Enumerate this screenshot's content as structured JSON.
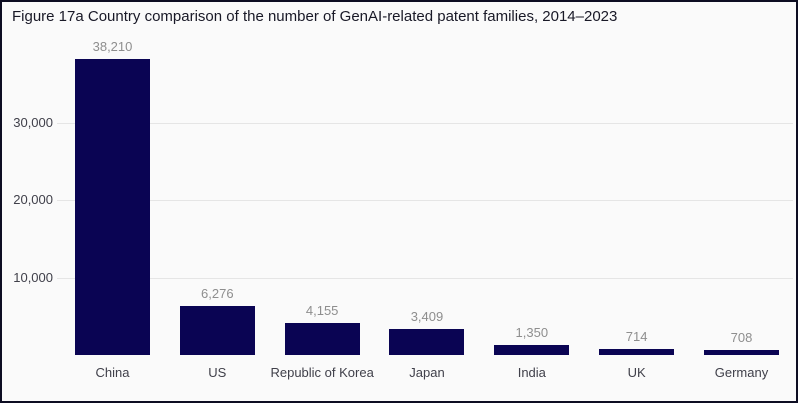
{
  "figure": {
    "title": "Figure 17a Country comparison of the number of GenAI-related patent families, 2014–2023"
  },
  "chart_data": {
    "type": "bar",
    "title": "Figure 17a Country comparison of the number of GenAI-related patent families, 2014–2023",
    "categories": [
      "China",
      "US",
      "Republic of Korea",
      "Japan",
      "India",
      "UK",
      "Germany"
    ],
    "values": [
      38210,
      6276,
      4155,
      3409,
      1350,
      714,
      708
    ],
    "value_labels": [
      "38,210",
      "6,276",
      "4,155",
      "3,409",
      "1,350",
      "714",
      "708"
    ],
    "xlabel": "",
    "ylabel": "",
    "ylim": [
      0,
      40000
    ],
    "yticks": [
      {
        "value": 10000,
        "label": "10,000"
      },
      {
        "value": 20000,
        "label": "20,000"
      },
      {
        "value": 30000,
        "label": "30,000"
      }
    ],
    "grid": "horizontal",
    "legend": "none"
  },
  "colors": {
    "background": "#fafafa",
    "border": "#0d0d22",
    "bar": "#0a0453",
    "gridline": "#e5e5e5",
    "title_text": "#191927",
    "axis_text": "#40404a",
    "value_label_text": "#8e8e8e"
  }
}
